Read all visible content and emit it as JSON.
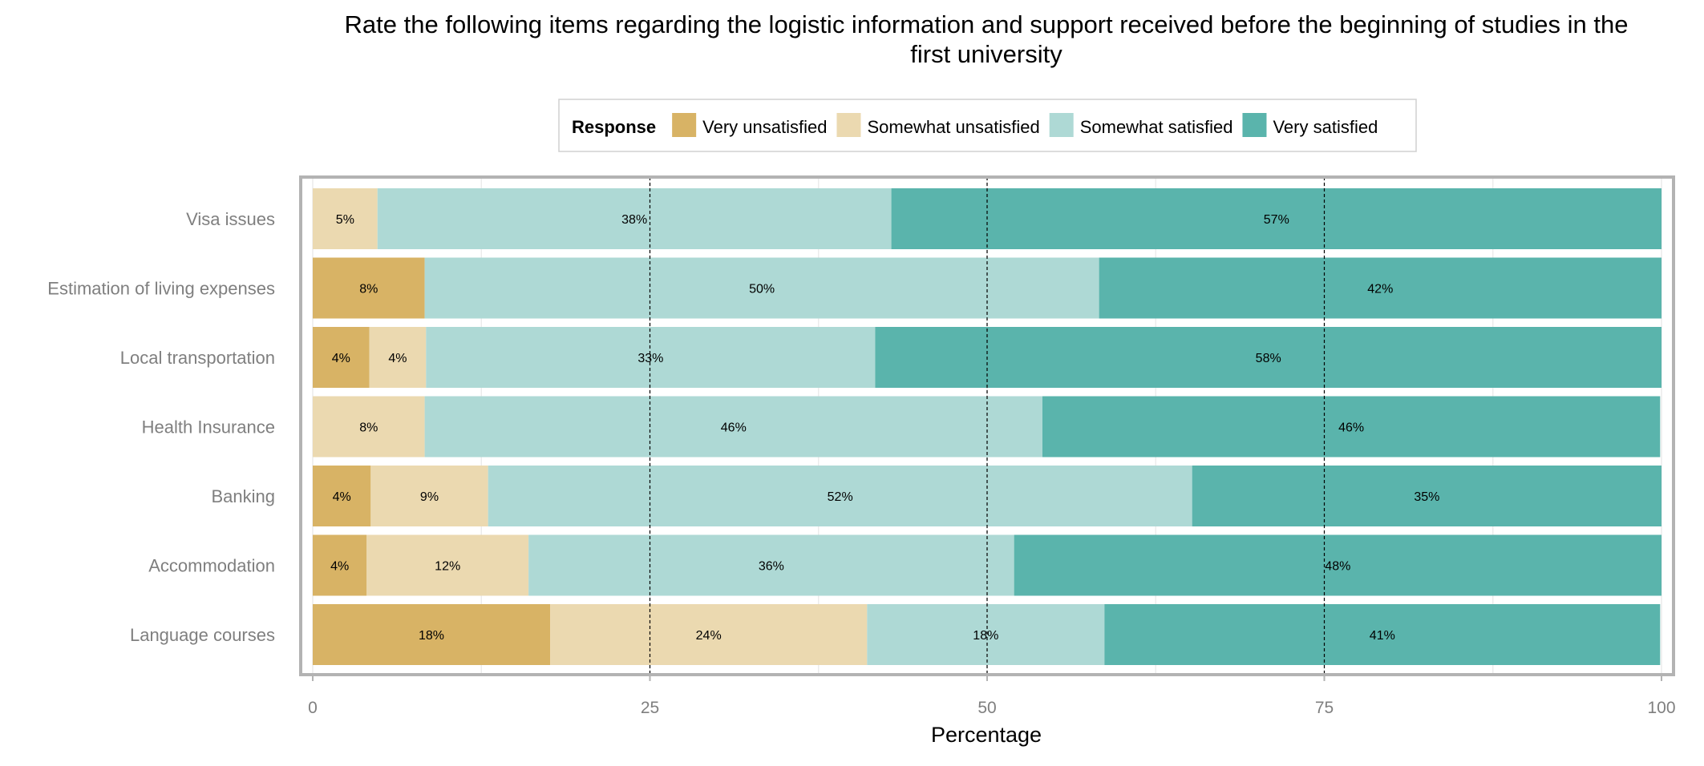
{
  "chart_data": {
    "type": "bar",
    "orientation": "horizontal",
    "stacked": true,
    "title": "Rate the following items regarding the logistic information and support received before the beginning of studies in the first university",
    "title_lines": [
      "Rate the following items regarding the logistic information and support received before the beginning of studies in the",
      "first university"
    ],
    "xlabel": "Percentage",
    "ylabel": "",
    "xlim": [
      0,
      100
    ],
    "xticks": [
      0,
      25,
      50,
      75,
      100
    ],
    "grid": true,
    "reference_lines": [
      25,
      50,
      75
    ],
    "legend": {
      "title": "Response",
      "position": "top"
    },
    "categories": [
      "Visa issues",
      "Estimation of living expenses",
      "Local transportation",
      "Health Insurance",
      "Banking",
      "Accommodation",
      "Language courses"
    ],
    "series": [
      {
        "name": "Very unsatisfied",
        "color": "#d8b365",
        "values": [
          0,
          8.3,
          4.2,
          0,
          4.3,
          4,
          17.6
        ],
        "labels": [
          "",
          "8%",
          "4%",
          "",
          "4%",
          "4%",
          "18%"
        ]
      },
      {
        "name": "Somewhat unsatisfied",
        "color": "#ebd9b0",
        "values": [
          4.8,
          0,
          4.2,
          8.3,
          8.7,
          12,
          23.5
        ],
        "labels": [
          "5%",
          "",
          "4%",
          "8%",
          "9%",
          "12%",
          "24%"
        ]
      },
      {
        "name": "Somewhat satisfied",
        "color": "#aed9d5",
        "values": [
          38.1,
          50,
          33.3,
          45.8,
          52.2,
          36,
          17.6
        ],
        "labels": [
          "38%",
          "50%",
          "33%",
          "46%",
          "52%",
          "36%",
          "18%"
        ]
      },
      {
        "name": "Very satisfied",
        "color": "#5ab4ac",
        "values": [
          57.1,
          41.7,
          58.3,
          45.8,
          34.8,
          48,
          41.2
        ],
        "labels": [
          "57%",
          "42%",
          "58%",
          "46%",
          "35%",
          "48%",
          "41%"
        ]
      }
    ]
  }
}
